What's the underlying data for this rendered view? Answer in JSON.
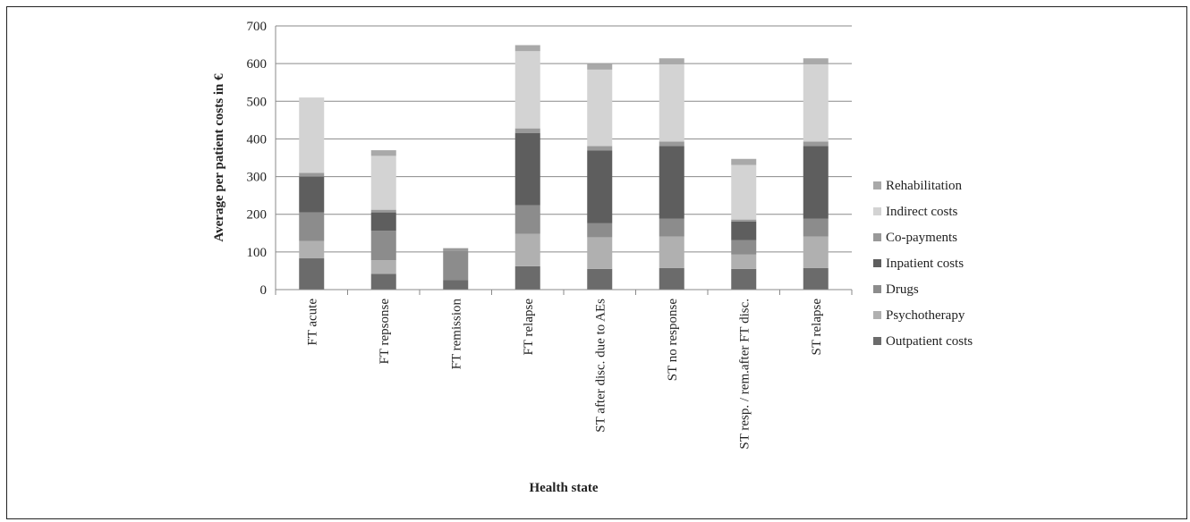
{
  "chart_data": {
    "type": "bar",
    "stacked": true,
    "xlabel": "Health state",
    "ylabel": "Average per patient costs in €",
    "ylim": [
      0,
      700
    ],
    "yticks": [
      0,
      100,
      200,
      300,
      400,
      500,
      600,
      700
    ],
    "grid": true,
    "legend_position": "right",
    "categories": [
      "FT acute",
      "FT repsonse",
      "FT remission",
      "FT relapse",
      "ST after disc. due to AEs",
      "ST no response",
      "ST resp. / rem.after FT disc.",
      "ST relapse"
    ],
    "series": [
      {
        "name": "Outpatient costs",
        "color": "#6b6b6b",
        "values": [
          83,
          42,
          25,
          62,
          55,
          57,
          55,
          57
        ]
      },
      {
        "name": "Psychotherapy",
        "color": "#b0b0b0",
        "values": [
          46,
          36,
          0,
          86,
          84,
          84,
          38,
          84
        ]
      },
      {
        "name": "Drugs",
        "color": "#8c8c8c",
        "values": [
          76,
          78,
          78,
          76,
          37,
          47,
          38,
          47
        ]
      },
      {
        "name": "Inpatient costs",
        "color": "#5e5e5e",
        "values": [
          95,
          49,
          0,
          192,
          193,
          193,
          50,
          193
        ]
      },
      {
        "name": "Co-payments",
        "color": "#999999",
        "values": [
          10,
          7,
          7,
          12,
          12,
          12,
          5,
          12
        ]
      },
      {
        "name": "Indirect costs",
        "color": "#d3d3d3",
        "values": [
          200,
          143,
          0,
          205,
          203,
          205,
          145,
          205
        ]
      },
      {
        "name": "Rehabilitation",
        "color": "#a9a9a9",
        "values": [
          0,
          15,
          0,
          16,
          16,
          16,
          16,
          16
        ]
      }
    ]
  }
}
